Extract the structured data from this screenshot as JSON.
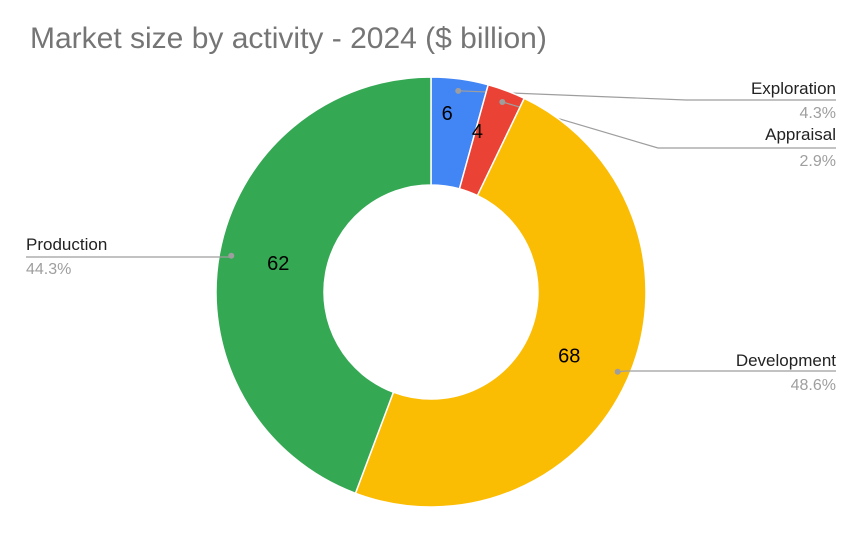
{
  "chart_data": {
    "type": "pie",
    "donut": true,
    "title": "Market size by activity - 2024 ($ billion)",
    "unit": "$ billion",
    "slices": [
      {
        "label": "Exploration",
        "value": 6,
        "percent_label": "4.3%",
        "color": "#4285F4"
      },
      {
        "label": "Appraisal",
        "value": 4,
        "percent_label": "2.9%",
        "color": "#EA4335"
      },
      {
        "label": "Development",
        "value": 68,
        "percent_label": "48.6%",
        "color": "#FBBC04"
      },
      {
        "label": "Production",
        "value": 62,
        "percent_label": "44.3%",
        "color": "#34A853"
      }
    ],
    "legend": "none"
  }
}
